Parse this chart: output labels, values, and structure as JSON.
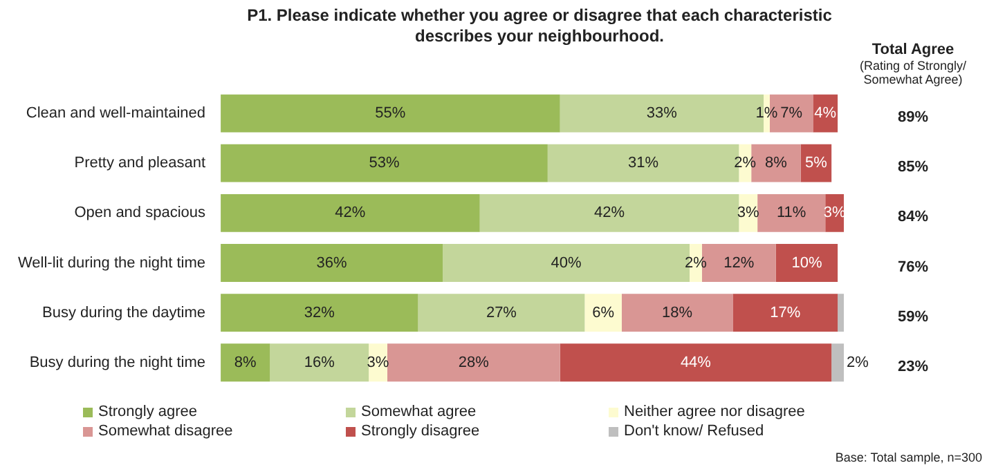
{
  "chart_data": {
    "type": "bar",
    "orientation": "horizontal",
    "stacked": true,
    "tick_labels": "y",
    "grid": false,
    "legend": "bottom",
    "title": "P1. Please indicate whether you agree or disagree that each characteristic describes your neighbourhood.",
    "categories": [
      "Clean and well-maintained",
      "Pretty and pleasant",
      "Open and spacious",
      "Well-lit during the night time",
      "Busy during the daytime",
      "Busy during the night time"
    ],
    "series": [
      {
        "name": "Strongly agree",
        "color": "#9bbb59",
        "values": [
          55,
          53,
          42,
          36,
          32,
          8
        ],
        "value_labels": [
          "55%",
          "53%",
          "42%",
          "36%",
          "32%",
          "8%"
        ]
      },
      {
        "name": "Somewhat agree",
        "color": "#c3d69b",
        "values": [
          33,
          31,
          42,
          40,
          27,
          16
        ],
        "value_labels": [
          "33%",
          "31%",
          "42%",
          "40%",
          "27%",
          "16%"
        ]
      },
      {
        "name": "Neither agree nor disagree",
        "color": "#fdfbd0",
        "values": [
          1,
          2,
          3,
          2,
          6,
          3
        ],
        "value_labels": [
          "1%",
          "2%",
          "3%",
          "2%",
          "6%",
          "3%"
        ]
      },
      {
        "name": "Somewhat disagree",
        "color": "#d99694",
        "values": [
          7,
          8,
          11,
          12,
          18,
          28
        ],
        "value_labels": [
          "7%",
          "8%",
          "11%",
          "12%",
          "18%",
          "28%"
        ]
      },
      {
        "name": "Strongly disagree",
        "color": "#c0504d",
        "values": [
          4,
          5,
          3,
          10,
          17,
          44
        ],
        "value_labels": [
          "4%",
          "5%",
          "3%",
          "10%",
          "17%",
          "44%"
        ]
      },
      {
        "name": "Don't know/ Refused",
        "color": "#bfbfbf",
        "values": [
          null,
          null,
          null,
          null,
          1,
          2
        ],
        "value_labels": [
          null,
          null,
          null,
          null,
          null,
          "2%"
        ]
      }
    ],
    "annotations": [
      "Total Agree",
      "(Rating of Strongly/ Somewhat Agree)",
      "89%",
      "85%",
      "84%",
      "76%",
      "59%",
      "23%",
      "Base: Total sample, n=300"
    ]
  }
}
